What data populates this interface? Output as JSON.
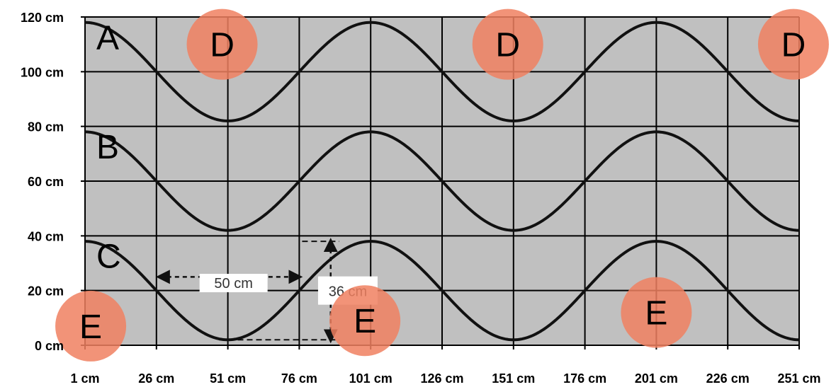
{
  "chart_data": {
    "type": "line",
    "x_ticks": [
      "1 cm",
      "26 cm",
      "51 cm",
      "76 cm",
      "101 cm",
      "126 cm",
      "151 cm",
      "176 cm",
      "201 cm",
      "226 cm",
      "251 cm"
    ],
    "y_ticks": [
      "0 cm",
      "20 cm",
      "40 cm",
      "60 cm",
      "80 cm",
      "100 cm",
      "120 cm"
    ],
    "xlim": [
      1,
      251
    ],
    "ylim": [
      0,
      120
    ],
    "grid": true,
    "background": "#c0c0c0",
    "line_color": "#111111",
    "series": [
      {
        "name": "A",
        "amplitude": 18,
        "offset": 100,
        "period": 100,
        "phase_x": 1
      },
      {
        "name": "B",
        "amplitude": 18,
        "offset": 60,
        "period": 100,
        "phase_x": 1
      },
      {
        "name": "C",
        "amplitude": 18,
        "offset": 20,
        "period": 100,
        "phase_x": 1
      }
    ],
    "markers": [
      {
        "label": "D",
        "x": 49,
        "y": 110
      },
      {
        "label": "D",
        "x": 149,
        "y": 110
      },
      {
        "label": "D",
        "x": 249,
        "y": 110
      },
      {
        "label": "E",
        "x": 3,
        "y": 7
      },
      {
        "label": "E",
        "x": 99,
        "y": 9
      },
      {
        "label": "E",
        "x": 201,
        "y": 12
      }
    ],
    "marker_color": "#f08060",
    "annotations": [
      {
        "text": "50 cm",
        "type": "horizontal",
        "x_from": 27,
        "x_to": 76,
        "y": 25,
        "label_x": 53,
        "label_y": 23
      },
      {
        "text": "36 cm",
        "type": "vertical",
        "x": 87,
        "y_from": 2,
        "y_to": 38,
        "label_x": 93,
        "label_y": 20
      }
    ]
  }
}
